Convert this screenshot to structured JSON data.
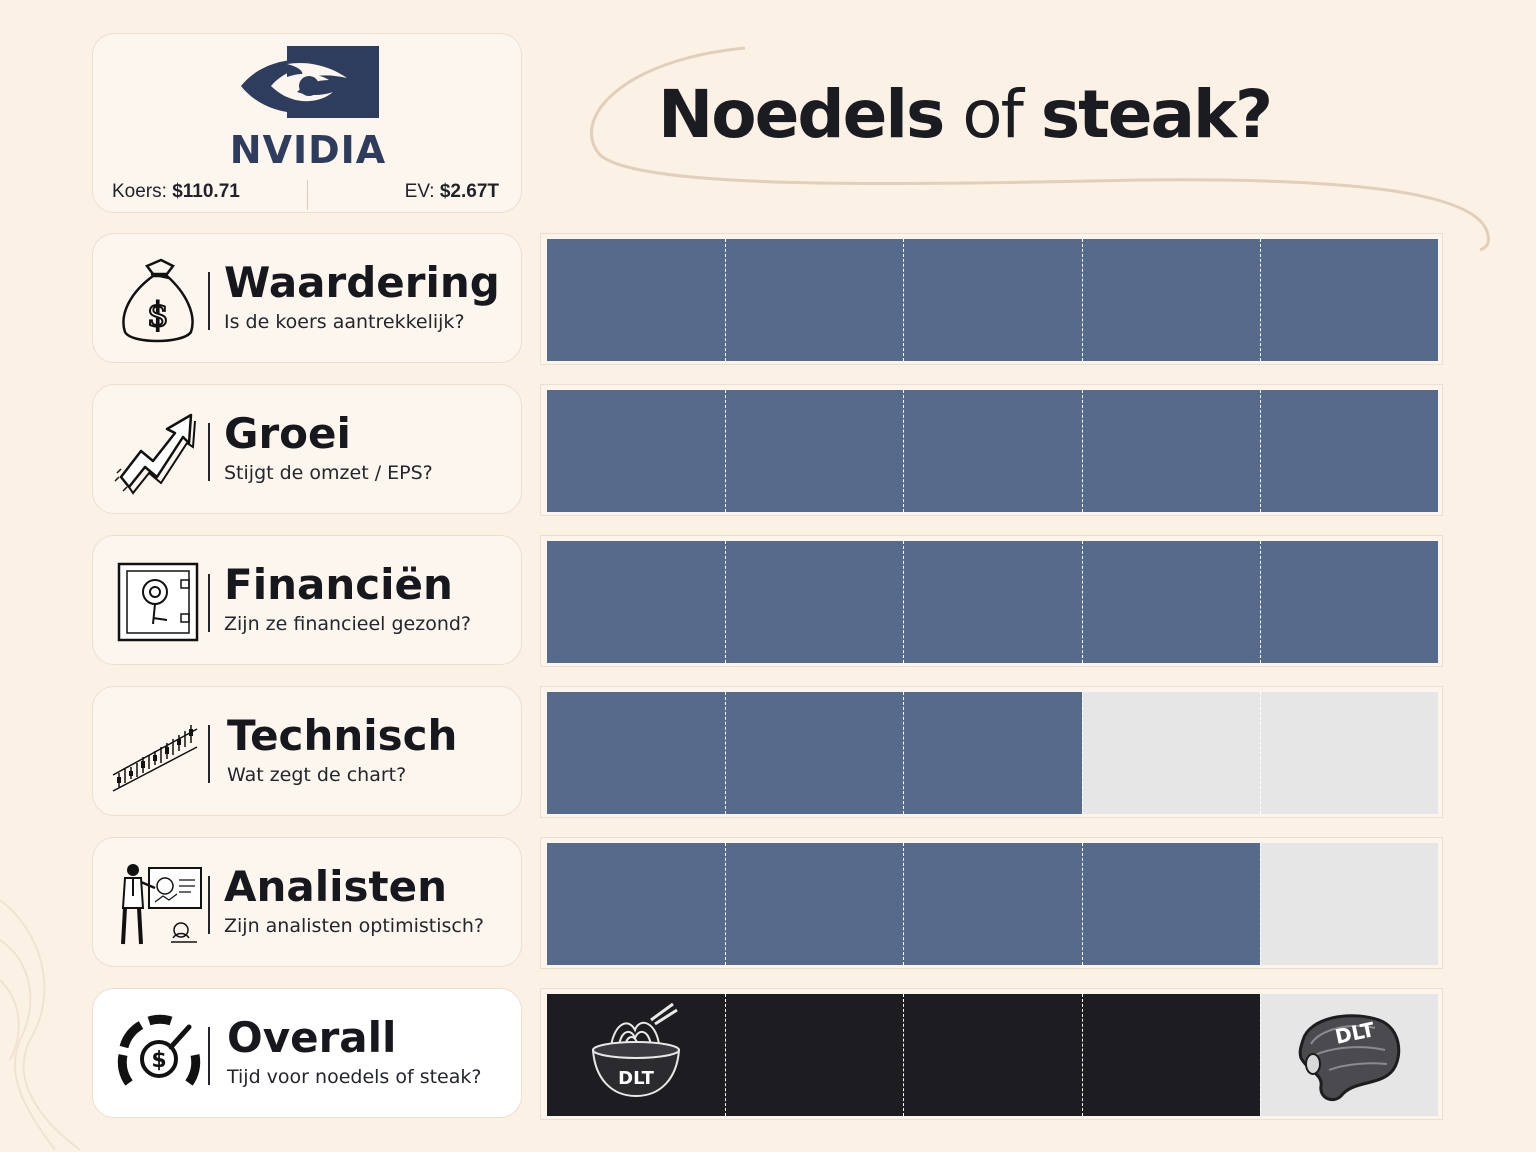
{
  "page_title": {
    "part1": "Noedels",
    "part2": "of",
    "part3": "steak?"
  },
  "company": {
    "name": "NVIDIA",
    "price_label": "Koers:",
    "price_value": "$110.71",
    "ev_label": "EV:",
    "ev_value": "$2.67T",
    "brand_color": "#76b900"
  },
  "colors": {
    "filled": "#566a8c",
    "overall": "#1c1c21",
    "empty": "#e6e6e6",
    "background": "#fcf1e5"
  },
  "chart_data": {
    "type": "bar",
    "orientation": "horizontal",
    "xlim": [
      0,
      5
    ],
    "max_score": 5,
    "categories": [
      "Waardering",
      "Groei",
      "Financiën",
      "Technisch",
      "Analisten",
      "Overall"
    ],
    "values": [
      5,
      5,
      5,
      3,
      4,
      4
    ],
    "rows": [
      {
        "title": "Waardering",
        "subtitle": "Is de koers aantrekkelijk?",
        "score": 5,
        "icon": "money-bag-icon"
      },
      {
        "title": "Groei",
        "subtitle": "Stijgt de omzet / EPS?",
        "score": 5,
        "icon": "growth-arrow-icon"
      },
      {
        "title": "Financiën",
        "subtitle": "Zijn ze financieel gezond?",
        "score": 5,
        "icon": "safe-icon"
      },
      {
        "title": "Technisch",
        "subtitle": "Wat zegt de chart?",
        "score": 3,
        "icon": "stock-chart-icon"
      },
      {
        "title": "Analisten",
        "subtitle": "Zijn analisten optimistisch?",
        "score": 4,
        "icon": "presenter-icon"
      },
      {
        "title": "Overall",
        "subtitle": "Tijd voor noedels of steak?",
        "score": 4,
        "icon": "gauge-icon"
      }
    ],
    "overall_labels": {
      "noodles": "DLT",
      "steak": "DLT"
    }
  }
}
